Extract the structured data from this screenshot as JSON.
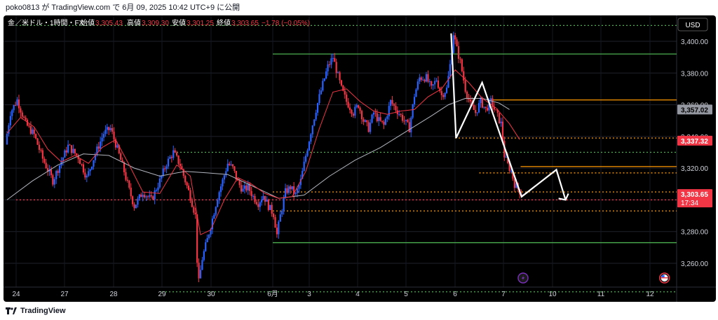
{
  "header": {
    "caption": "poko0813 が TradingView.com で 6月 09, 2025 10:42 UTC+9 に公開"
  },
  "legend": {
    "symbol": "金／米ドル・1時間・FX",
    "open_label": "始値",
    "open": "3,305.43",
    "high_label": "高値",
    "high": "3,309.30",
    "low_label": "安値",
    "low": "3,301.25",
    "close_label": "終値",
    "close": "3,303.65",
    "change": "−1.78 (−0.05%)"
  },
  "currency_button": "USD",
  "footer": {
    "brand": "TradingView"
  },
  "colors": {
    "background": "#000000",
    "up": "#2962ff",
    "down": "#f23645",
    "ma_fast": "#f23645",
    "ma_slow": "#b2b5be",
    "green_level": "#4caf50",
    "orange_level": "#ff9800",
    "projection": "#ffffff"
  },
  "chart_data": {
    "type": "candlestick",
    "x_tick_labels": [
      "24",
      "27",
      "28",
      "29",
      "30",
      "6月",
      "3",
      "4",
      "5",
      "6",
      "7",
      "10",
      "11",
      "12"
    ],
    "y_tick_labels": [
      "3,400.00",
      "3,380.00",
      "3,360.00",
      "3,340.00",
      "3,320.00",
      "3,300.00",
      "3,280.00",
      "3,260.00"
    ],
    "ylim": [
      3240,
      3414
    ],
    "price_labels": [
      {
        "value": 3357.02,
        "text": "3,357.02",
        "series": "ma_slow"
      },
      {
        "value": 3337.32,
        "text": "3,337.32",
        "series": "ma_fast"
      },
      {
        "value": 3303.65,
        "text": "3,303.65",
        "sub": "17:34",
        "series": "last"
      }
    ],
    "anchors": [
      [
        0,
        3335
      ],
      [
        3,
        3355
      ],
      [
        7,
        3363
      ],
      [
        12,
        3348
      ],
      [
        17,
        3341
      ],
      [
        22,
        3326
      ],
      [
        28,
        3312
      ],
      [
        32,
        3322
      ],
      [
        37,
        3334
      ],
      [
        43,
        3327
      ],
      [
        48,
        3314
      ],
      [
        53,
        3329
      ],
      [
        58,
        3342
      ],
      [
        62,
        3345
      ],
      [
        66,
        3332
      ],
      [
        70,
        3318
      ],
      [
        73,
        3306
      ],
      [
        76,
        3296
      ],
      [
        81,
        3305
      ],
      [
        86,
        3300
      ],
      [
        91,
        3312
      ],
      [
        95,
        3323
      ],
      [
        99,
        3330
      ],
      [
        103,
        3322
      ],
      [
        106,
        3312
      ],
      [
        109,
        3302
      ],
      [
        112,
        3290
      ],
      [
        113,
        3262
      ],
      [
        114,
        3248
      ],
      [
        116,
        3263
      ],
      [
        119,
        3275
      ],
      [
        122,
        3288
      ],
      [
        125,
        3302
      ],
      [
        128,
        3312
      ],
      [
        131,
        3323
      ],
      [
        134,
        3320
      ],
      [
        137,
        3311
      ],
      [
        140,
        3306
      ],
      [
        143,
        3308
      ],
      [
        146,
        3302
      ],
      [
        149,
        3298
      ],
      [
        152,
        3303
      ],
      [
        155,
        3296
      ],
      [
        158,
        3291
      ],
      [
        160,
        3278
      ],
      [
        162,
        3290
      ],
      [
        165,
        3305
      ],
      [
        168,
        3308
      ],
      [
        171,
        3303
      ],
      [
        174,
        3312
      ],
      [
        177,
        3328
      ],
      [
        180,
        3343
      ],
      [
        183,
        3357
      ],
      [
        187,
        3373
      ],
      [
        190,
        3384
      ],
      [
        193,
        3390
      ],
      [
        195,
        3382
      ],
      [
        198,
        3370
      ],
      [
        201,
        3362
      ],
      [
        205,
        3355
      ],
      [
        208,
        3360
      ],
      [
        211,
        3350
      ],
      [
        214,
        3345
      ],
      [
        217,
        3355
      ],
      [
        220,
        3350
      ],
      [
        223,
        3347
      ],
      [
        227,
        3362
      ],
      [
        231,
        3356
      ],
      [
        235,
        3350
      ],
      [
        238,
        3345
      ],
      [
        241,
        3366
      ],
      [
        244,
        3377
      ],
      [
        248,
        3377
      ],
      [
        251,
        3370
      ],
      [
        254,
        3376
      ],
      [
        257,
        3366
      ],
      [
        260,
        3370
      ],
      [
        262,
        3385
      ],
      [
        264,
        3405
      ],
      [
        266,
        3395
      ],
      [
        268,
        3387
      ],
      [
        271,
        3370
      ],
      [
        274,
        3360
      ],
      [
        277,
        3355
      ],
      [
        280,
        3362
      ],
      [
        283,
        3357
      ],
      [
        286,
        3362
      ],
      [
        289,
        3355
      ],
      [
        292,
        3348
      ],
      [
        294,
        3328
      ],
      [
        296,
        3322
      ],
      [
        298,
        3318
      ],
      [
        300,
        3310
      ],
      [
        302,
        3307
      ],
      [
        304,
        3304
      ]
    ],
    "ma_fast": [
      [
        0,
        3342
      ],
      [
        8,
        3352
      ],
      [
        16,
        3346
      ],
      [
        24,
        3332
      ],
      [
        32,
        3324
      ],
      [
        40,
        3328
      ],
      [
        48,
        3323
      ],
      [
        56,
        3333
      ],
      [
        64,
        3338
      ],
      [
        72,
        3322
      ],
      [
        80,
        3305
      ],
      [
        90,
        3304
      ],
      [
        100,
        3322
      ],
      [
        108,
        3315
      ],
      [
        114,
        3278
      ],
      [
        120,
        3281
      ],
      [
        128,
        3300
      ],
      [
        136,
        3314
      ],
      [
        144,
        3310
      ],
      [
        152,
        3304
      ],
      [
        160,
        3301
      ],
      [
        168,
        3302
      ],
      [
        176,
        3318
      ],
      [
        184,
        3345
      ],
      [
        192,
        3368
      ],
      [
        200,
        3370
      ],
      [
        208,
        3362
      ],
      [
        216,
        3356
      ],
      [
        224,
        3354
      ],
      [
        232,
        3356
      ],
      [
        240,
        3357
      ],
      [
        248,
        3365
      ],
      [
        256,
        3370
      ],
      [
        264,
        3382
      ],
      [
        272,
        3374
      ],
      [
        280,
        3364
      ],
      [
        288,
        3358
      ],
      [
        296,
        3348
      ],
      [
        302,
        3338
      ]
    ],
    "ma_slow": [
      [
        0,
        3300
      ],
      [
        15,
        3312
      ],
      [
        30,
        3322
      ],
      [
        45,
        3329
      ],
      [
        60,
        3328
      ],
      [
        75,
        3320
      ],
      [
        90,
        3315
      ],
      [
        105,
        3318
      ],
      [
        118,
        3317
      ],
      [
        130,
        3316
      ],
      [
        140,
        3311
      ],
      [
        150,
        3306
      ],
      [
        160,
        3301
      ],
      [
        175,
        3303
      ],
      [
        190,
        3315
      ],
      [
        205,
        3325
      ],
      [
        220,
        3333
      ],
      [
        235,
        3343
      ],
      [
        250,
        3353
      ],
      [
        260,
        3360
      ],
      [
        270,
        3364
      ],
      [
        280,
        3364
      ],
      [
        290,
        3361
      ],
      [
        296,
        3357
      ]
    ],
    "levels": [
      {
        "value": 3392,
        "style": "solid",
        "color": "green",
        "from_day": 5
      },
      {
        "value": 3273,
        "style": "solid",
        "color": "green",
        "from_day": 5
      },
      {
        "value": 3410,
        "style": "dotted",
        "color": "green",
        "from_day": 0
      },
      {
        "value": 3330,
        "style": "dotted",
        "color": "green",
        "from_day": 3.3
      },
      {
        "value": 3242,
        "style": "dotted",
        "color": "green",
        "from_day": 3
      },
      {
        "value": 3363,
        "style": "solid",
        "color": "orange",
        "from_day": 9.75
      },
      {
        "value": 3339,
        "style": "dotted",
        "color": "orange",
        "from_day": 9
      },
      {
        "value": 3321,
        "style": "solid",
        "color": "orange",
        "from_day": 10.35
      },
      {
        "value": 3317,
        "style": "dotted",
        "color": "orange",
        "from_day": 9.5
      },
      {
        "value": 3305,
        "style": "dotted",
        "color": "orange",
        "from_day": 5
      },
      {
        "value": 3300,
        "style": "dotted",
        "color": "red",
        "from_day": 0
      },
      {
        "value": 3293,
        "style": "dotted",
        "color": "orange",
        "from_day": 5
      }
    ],
    "projection": [
      [
        8.92,
        3405
      ],
      [
        9.02,
        3339
      ],
      [
        9.56,
        3374
      ],
      [
        10.37,
        3302
      ],
      [
        11.08,
        3319
      ],
      [
        11.27,
        3300
      ]
    ],
    "events": [
      {
        "day": 10.4,
        "icon": "lightning-icon",
        "color": "#7b2fbe"
      },
      {
        "day": 13.3,
        "icon": "us-flag-icon",
        "color": "#f23645"
      }
    ]
  }
}
